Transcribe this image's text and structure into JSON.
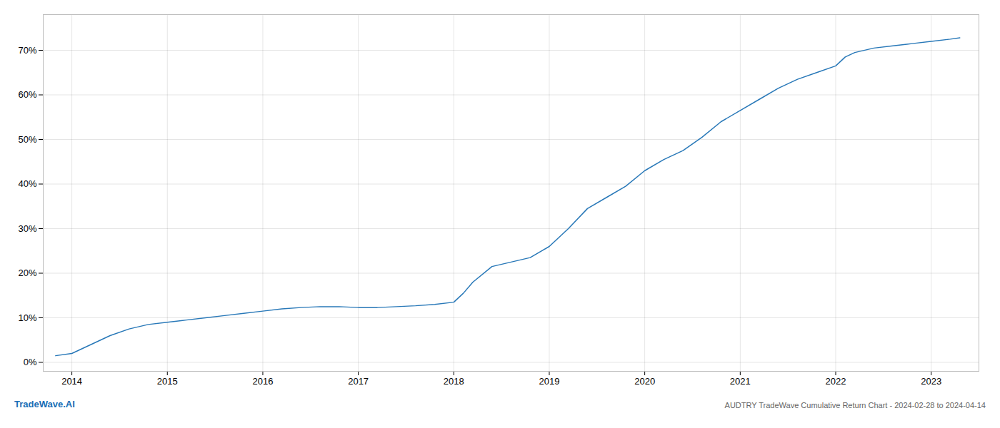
{
  "chart_data": {
    "type": "line",
    "title": "AUDTRY TradeWave Cumulative Return Chart - 2024-02-28 to 2024-04-14",
    "annotations": [
      "TradeWave.AI"
    ],
    "x": [
      2013.83,
      2014.0,
      2014.2,
      2014.4,
      2014.6,
      2014.8,
      2015.0,
      2015.2,
      2015.4,
      2015.6,
      2015.8,
      2016.0,
      2016.2,
      2016.4,
      2016.6,
      2016.8,
      2017.0,
      2017.2,
      2017.4,
      2017.6,
      2017.8,
      2018.0,
      2018.1,
      2018.2,
      2018.4,
      2018.6,
      2018.8,
      2019.0,
      2019.2,
      2019.4,
      2019.6,
      2019.8,
      2020.0,
      2020.2,
      2020.4,
      2020.6,
      2020.8,
      2021.0,
      2021.2,
      2021.4,
      2021.6,
      2021.8,
      2022.0,
      2022.1,
      2022.2,
      2022.4,
      2022.6,
      2022.8,
      2023.0,
      2023.2,
      2023.3
    ],
    "values": [
      1.5,
      2.0,
      4.0,
      6.0,
      7.5,
      8.5,
      9.0,
      9.5,
      10.0,
      10.5,
      11.0,
      11.5,
      12.0,
      12.3,
      12.5,
      12.5,
      12.3,
      12.3,
      12.5,
      12.7,
      13.0,
      13.5,
      15.5,
      18.0,
      21.5,
      22.5,
      23.5,
      26.0,
      30.0,
      34.5,
      37.0,
      39.5,
      43.0,
      45.5,
      47.5,
      50.5,
      54.0,
      56.5,
      59.0,
      61.5,
      63.5,
      65.0,
      66.5,
      68.5,
      69.5,
      70.5,
      71.0,
      71.5,
      72.0,
      72.5,
      72.8
    ],
    "color": "#2878b8",
    "xlim": [
      2013.7,
      2023.5
    ],
    "xticks": [
      2014,
      2015,
      2016,
      2017,
      2018,
      2019,
      2020,
      2021,
      2022,
      2023
    ],
    "ylim": [
      -2,
      78
    ],
    "yticks": [
      {
        "value": 0,
        "label": "0%"
      },
      {
        "value": 10,
        "label": "10%"
      },
      {
        "value": 20,
        "label": "20%"
      },
      {
        "value": 30,
        "label": "30%"
      },
      {
        "value": 40,
        "label": "40%"
      },
      {
        "value": 50,
        "label": "50%"
      },
      {
        "value": 60,
        "label": "60%"
      },
      {
        "value": 70,
        "label": "70%"
      }
    ],
    "grid": true
  }
}
